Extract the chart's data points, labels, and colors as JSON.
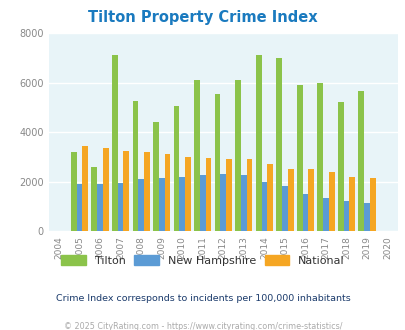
{
  "title": "Tilton Property Crime Index",
  "years": [
    2004,
    2005,
    2006,
    2007,
    2008,
    2009,
    2010,
    2011,
    2012,
    2013,
    2014,
    2015,
    2016,
    2017,
    2018,
    2019,
    2020
  ],
  "tilton": [
    0,
    3200,
    2600,
    7100,
    5250,
    4400,
    5050,
    6100,
    5550,
    6100,
    7100,
    7000,
    5900,
    6000,
    5200,
    5650,
    0
  ],
  "new_hampshire": [
    0,
    1900,
    1900,
    1950,
    2100,
    2150,
    2200,
    2250,
    2300,
    2250,
    2000,
    1800,
    1500,
    1350,
    1200,
    1150,
    0
  ],
  "national": [
    0,
    3450,
    3350,
    3250,
    3200,
    3100,
    3000,
    2950,
    2900,
    2900,
    2700,
    2500,
    2500,
    2400,
    2200,
    2150,
    0
  ],
  "ylim": [
    0,
    8000
  ],
  "yticks": [
    0,
    2000,
    4000,
    6000,
    8000
  ],
  "bar_width": 0.28,
  "tilton_color": "#8bc34a",
  "nh_color": "#5b9bd5",
  "national_color": "#f5a623",
  "bg_color": "#e8f4f8",
  "grid_color": "#ffffff",
  "subtitle": "Crime Index corresponds to incidents per 100,000 inhabitants",
  "footer": "© 2025 CityRating.com - https://www.cityrating.com/crime-statistics/",
  "title_color": "#1a7abf",
  "subtitle_color": "#1a3a6b",
  "footer_color": "#aaaaaa",
  "legend_label_color": "#333333"
}
